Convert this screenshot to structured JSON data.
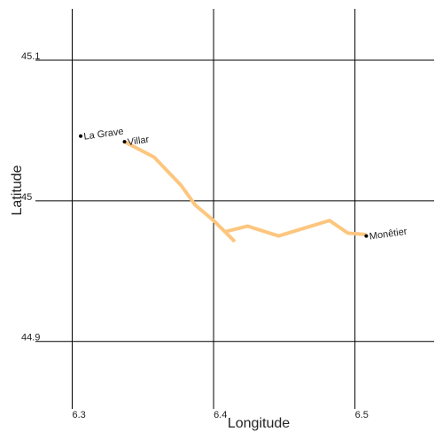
{
  "chart_data": {
    "type": "line",
    "xlabel": "Longitude",
    "ylabel": "Latitude",
    "xlim": [
      6.274,
      6.556
    ],
    "ylim": [
      44.852,
      45.1365
    ],
    "xticks": [
      6.3,
      6.4,
      6.5
    ],
    "yticks": [
      44.9,
      45,
      45.1
    ],
    "grid": true,
    "series": [
      {
        "color": "#fdc67f",
        "x": [
          6.337,
          6.358,
          6.377,
          6.387,
          6.4,
          6.415,
          null,
          6.408,
          6.424,
          6.446,
          6.482,
          6.495,
          6.508
        ],
        "values": [
          45.042,
          45.031,
          45.011,
          44.997,
          44.986,
          44.971,
          null,
          44.978,
          44.982,
          44.975,
          44.986,
          44.977,
          44.976
        ]
      }
    ],
    "places": [
      {
        "name": "La Grave",
        "lon": 6.306,
        "lat": 45.046
      },
      {
        "name": "Villar",
        "lon": 6.337,
        "lat": 45.042
      },
      {
        "name": "Monêtier",
        "lon": 6.508,
        "lat": 44.975
      }
    ]
  }
}
